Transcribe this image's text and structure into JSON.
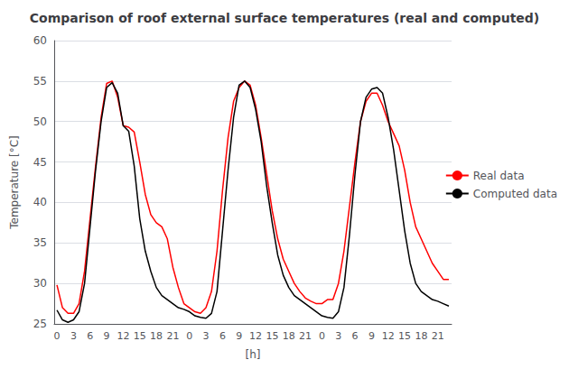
{
  "chart_data": {
    "type": "line",
    "title": "Comparison of roof external surface temperatures (real and computed)",
    "x_label": "[h]",
    "y_label": "Temperature [°C]",
    "categories": [
      "0",
      null,
      null,
      "3",
      null,
      null,
      "6",
      null,
      null,
      "9",
      null,
      null,
      "12",
      null,
      null,
      "15",
      null,
      null,
      "18",
      null,
      null,
      "21",
      null,
      null,
      "0",
      null,
      null,
      "3",
      null,
      null,
      "6",
      null,
      null,
      "9",
      null,
      null,
      "12",
      null,
      null,
      "15",
      null,
      null,
      "18",
      null,
      null,
      "21",
      null,
      null,
      "0",
      null,
      null,
      "3",
      null,
      null,
      "6",
      null,
      null,
      "9",
      null,
      null,
      "12",
      null,
      null,
      "15",
      null,
      null,
      "18",
      null,
      null,
      "21",
      null,
      null
    ],
    "series": [
      {
        "name": "Real data",
        "color": "#ff0000",
        "values": [
          29.8,
          27.0,
          26.3,
          26.3,
          27.5,
          31.5,
          38.0,
          44.5,
          50.5,
          54.7,
          55.0,
          53.0,
          49.5,
          49.3,
          48.7,
          45.0,
          41.0,
          38.5,
          37.5,
          37.0,
          35.5,
          32.0,
          29.5,
          27.5,
          27.0,
          26.5,
          26.3,
          27.0,
          29.0,
          34.0,
          41.5,
          48.0,
          52.5,
          54.2,
          55.0,
          54.5,
          52.0,
          48.0,
          43.5,
          39.0,
          35.5,
          33.0,
          31.5,
          30.0,
          29.0,
          28.2,
          27.8,
          27.5,
          27.5,
          28.0,
          28.0,
          30.0,
          34.0,
          39.5,
          45.0,
          50.0,
          52.5,
          53.5,
          53.5,
          52.0,
          50.0,
          48.5,
          47.0,
          44.0,
          40.0,
          37.0,
          35.5,
          34.0,
          32.5,
          31.5,
          30.5,
          30.5
        ]
      },
      {
        "name": "Computed data",
        "color": "#000000",
        "values": [
          26.7,
          25.5,
          25.2,
          25.5,
          26.5,
          30.0,
          37.0,
          44.0,
          50.0,
          54.2,
          54.8,
          53.5,
          49.5,
          48.8,
          44.5,
          38.0,
          34.0,
          31.5,
          29.5,
          28.5,
          28.0,
          27.5,
          27.0,
          26.8,
          26.5,
          26.0,
          25.8,
          25.7,
          26.3,
          29.0,
          36.5,
          44.0,
          50.5,
          54.5,
          55.0,
          54.2,
          51.5,
          47.5,
          42.0,
          37.5,
          33.5,
          31.0,
          29.5,
          28.5,
          28.0,
          27.5,
          27.0,
          26.5,
          26.0,
          25.8,
          25.7,
          26.5,
          29.5,
          36.0,
          43.5,
          50.0,
          53.0,
          54.0,
          54.2,
          53.5,
          50.5,
          46.5,
          41.5,
          36.5,
          32.5,
          30.0,
          29.0,
          28.5,
          28.0,
          27.8,
          27.5,
          27.2
        ]
      }
    ],
    "ylim": [
      25,
      60
    ],
    "yticks": [
      25,
      30,
      35,
      40,
      45,
      50,
      55,
      60
    ],
    "grid": true,
    "legend": "right"
  }
}
